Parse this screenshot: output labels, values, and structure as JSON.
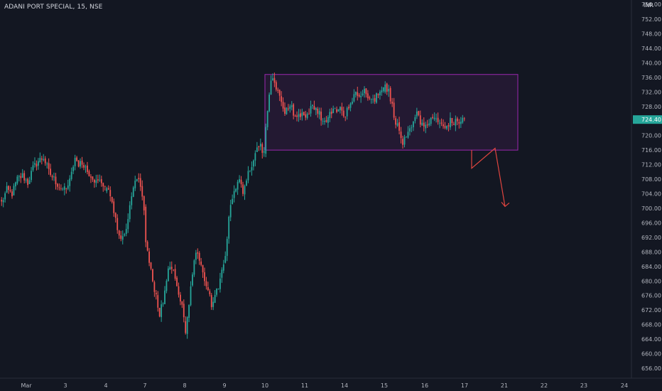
{
  "header": {
    "instrument": "ADANI PORT SPECIAL, 15, NSE",
    "currency": "INR",
    "top_price_label": "756.00"
  },
  "colors": {
    "background": "#131722",
    "up": "#26a69a",
    "down": "#ef5350",
    "axis_text": "#b2b5be",
    "zone_border": "#9c27b0",
    "zone_fill": "rgba(156,39,176,0.12)",
    "arrow": "#e0453f",
    "price_badge": "#26a69a"
  },
  "chart_data": {
    "type": "candlestick",
    "title": "ADANI PORT SPECIAL, 15, NSE",
    "y_axis": {
      "ticks": [
        "752.00",
        "748.00",
        "744.00",
        "740.00",
        "736.00",
        "732.00",
        "728.00",
        "724.00",
        "720.00",
        "716.00",
        "712.00",
        "708.00",
        "704.00",
        "700.00",
        "696.00",
        "692.00",
        "688.00",
        "684.00",
        "680.00",
        "676.00",
        "672.00",
        "668.00",
        "664.00",
        "660.00",
        "656.00"
      ],
      "range": [
        654.6,
        757.8
      ]
    },
    "x_axis": {
      "ticks": [
        "Mar",
        "3",
        "4",
        "7",
        "8",
        "9",
        "10",
        "11",
        "14",
        "15",
        "16",
        "17",
        "21",
        "22",
        "23",
        "24"
      ]
    },
    "last_price": "724.40",
    "session_closes": [
      {
        "session": "Mar",
        "path": [
          701.5,
          705,
          704,
          708,
          709,
          707,
          711,
          713,
          714,
          710,
          708,
          706,
          705
        ]
      },
      {
        "session": "3",
        "path": [
          705,
          708,
          714,
          712,
          712.5,
          710,
          709,
          707,
          707.5,
          706
        ]
      },
      {
        "session": "4",
        "path": [
          706,
          703,
          699,
          695,
          692.5,
          691,
          696,
          701,
          706,
          709,
          705,
          700
        ]
      },
      {
        "session": "7",
        "path": [
          691,
          685,
          680,
          676,
          671,
          674,
          681,
          684,
          682,
          678,
          675,
          671
        ]
      },
      {
        "session": "8",
        "path": [
          666,
          673,
          680,
          686,
          688,
          685,
          681,
          679,
          677,
          672,
          675,
          678,
          681,
          685
        ]
      },
      {
        "session": "9",
        "path": [
          687,
          697,
          703,
          706,
          708,
          705,
          708,
          711,
          713,
          716,
          717,
          715
        ]
      },
      {
        "session": "10",
        "path": [
          723,
          729,
          734,
          736,
          733,
          731,
          729,
          727,
          726.5,
          727,
          729,
          726,
          724,
          725,
          726,
          725
        ]
      },
      {
        "session": "11",
        "path": [
          725,
          727,
          729,
          727,
          726,
          724,
          724.5,
          726,
          728,
          727,
          727.5,
          726
        ]
      },
      {
        "session": "14",
        "path": [
          726,
          728,
          730,
          731,
          731.5,
          732,
          732,
          731,
          730,
          729,
          731,
          732,
          734
        ]
      },
      {
        "session": "15",
        "path": [
          734,
          732,
          728,
          724,
          721,
          718,
          719,
          721,
          723,
          726,
          724,
          723
        ]
      },
      {
        "session": "16",
        "path": [
          723,
          724,
          725,
          723,
          722,
          724,
          723.5,
          724,
          724.4
        ]
      }
    ],
    "annotations": {
      "range_box": {
        "start": "10",
        "end": "21",
        "top_price": 736.8,
        "bottom_price": 716.0
      },
      "projection_arrow": [
        {
          "session": "17",
          "price": 716.0
        },
        {
          "session": "17",
          "price": 711.0
        },
        {
          "session": "21",
          "price": 716.5
        },
        {
          "session": "21",
          "price": 700.5
        }
      ]
    }
  }
}
